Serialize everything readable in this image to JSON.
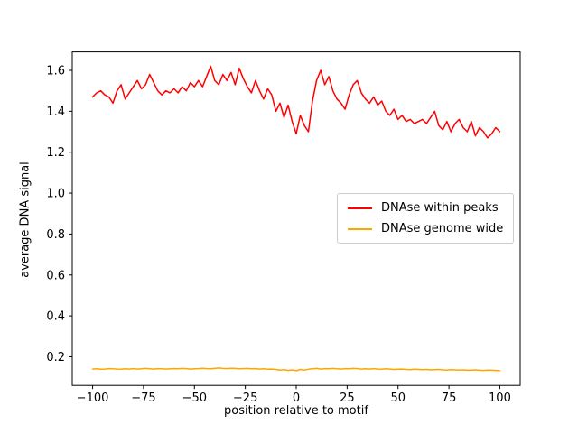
{
  "figure": {
    "background": "#ffffff"
  },
  "chart_data": {
    "type": "line",
    "title": "",
    "xlabel": "position relative to motif",
    "ylabel": "average DNA signal",
    "xlim": [
      -110,
      110
    ],
    "ylim": [
      0.06,
      1.69
    ],
    "grid": false,
    "legend_position": "center right",
    "xticks": [
      -100,
      -75,
      -50,
      -25,
      0,
      25,
      50,
      75,
      100
    ],
    "xtick_labels": [
      "−100",
      "−75",
      "−50",
      "−25",
      "0",
      "25",
      "50",
      "75",
      "100"
    ],
    "yticks": [
      0.2,
      0.4,
      0.6,
      0.8,
      1.0,
      1.2,
      1.4,
      1.6
    ],
    "ytick_labels": [
      "0.2",
      "0.4",
      "0.6",
      "0.8",
      "1.0",
      "1.2",
      "1.4",
      "1.6"
    ],
    "x": [
      -100,
      -98,
      -96,
      -94,
      -92,
      -90,
      -88,
      -86,
      -84,
      -82,
      -80,
      -78,
      -76,
      -74,
      -72,
      -70,
      -68,
      -66,
      -64,
      -62,
      -60,
      -58,
      -56,
      -54,
      -52,
      -50,
      -48,
      -46,
      -44,
      -42,
      -40,
      -38,
      -36,
      -34,
      -32,
      -30,
      -28,
      -26,
      -24,
      -22,
      -20,
      -18,
      -16,
      -14,
      -12,
      -10,
      -8,
      -6,
      -4,
      -2,
      0,
      2,
      4,
      6,
      8,
      10,
      12,
      14,
      16,
      18,
      20,
      22,
      24,
      26,
      28,
      30,
      32,
      34,
      36,
      38,
      40,
      42,
      44,
      46,
      48,
      50,
      52,
      54,
      56,
      58,
      60,
      62,
      64,
      66,
      68,
      70,
      72,
      74,
      76,
      78,
      80,
      82,
      84,
      86,
      88,
      90,
      92,
      94,
      96,
      98,
      100
    ],
    "series": [
      {
        "name": "DNAse within peaks",
        "color": "#ff0000",
        "values": [
          1.47,
          1.49,
          1.5,
          1.48,
          1.47,
          1.44,
          1.5,
          1.53,
          1.46,
          1.49,
          1.52,
          1.55,
          1.51,
          1.53,
          1.58,
          1.54,
          1.5,
          1.48,
          1.5,
          1.49,
          1.51,
          1.49,
          1.52,
          1.5,
          1.54,
          1.52,
          1.55,
          1.52,
          1.57,
          1.62,
          1.55,
          1.53,
          1.58,
          1.55,
          1.59,
          1.53,
          1.61,
          1.56,
          1.52,
          1.49,
          1.55,
          1.5,
          1.46,
          1.51,
          1.48,
          1.4,
          1.44,
          1.37,
          1.43,
          1.35,
          1.29,
          1.38,
          1.33,
          1.3,
          1.45,
          1.55,
          1.6,
          1.53,
          1.57,
          1.5,
          1.46,
          1.44,
          1.41,
          1.48,
          1.53,
          1.55,
          1.49,
          1.46,
          1.44,
          1.47,
          1.43,
          1.45,
          1.4,
          1.38,
          1.41,
          1.36,
          1.38,
          1.35,
          1.36,
          1.34,
          1.35,
          1.36,
          1.34,
          1.37,
          1.4,
          1.33,
          1.31,
          1.35,
          1.3,
          1.34,
          1.36,
          1.32,
          1.3,
          1.35,
          1.28,
          1.32,
          1.3,
          1.27,
          1.29,
          1.32,
          1.3
        ]
      },
      {
        "name": "DNAse genome wide",
        "color": "#ffa500",
        "values": [
          0.14,
          0.141,
          0.139,
          0.14,
          0.142,
          0.141,
          0.14,
          0.139,
          0.141,
          0.14,
          0.142,
          0.14,
          0.141,
          0.143,
          0.141,
          0.14,
          0.142,
          0.141,
          0.14,
          0.141,
          0.142,
          0.141,
          0.143,
          0.142,
          0.14,
          0.141,
          0.142,
          0.144,
          0.142,
          0.141,
          0.143,
          0.145,
          0.143,
          0.142,
          0.144,
          0.143,
          0.141,
          0.142,
          0.143,
          0.141,
          0.142,
          0.14,
          0.141,
          0.139,
          0.14,
          0.138,
          0.135,
          0.137,
          0.133,
          0.136,
          0.132,
          0.138,
          0.135,
          0.139,
          0.141,
          0.143,
          0.14,
          0.142,
          0.141,
          0.143,
          0.141,
          0.14,
          0.142,
          0.141,
          0.143,
          0.142,
          0.14,
          0.141,
          0.14,
          0.142,
          0.14,
          0.139,
          0.141,
          0.14,
          0.138,
          0.139,
          0.14,
          0.138,
          0.137,
          0.139,
          0.138,
          0.137,
          0.138,
          0.136,
          0.137,
          0.138,
          0.136,
          0.135,
          0.137,
          0.136,
          0.135,
          0.136,
          0.134,
          0.135,
          0.136,
          0.134,
          0.133,
          0.135,
          0.134,
          0.133,
          0.132
        ]
      }
    ]
  }
}
